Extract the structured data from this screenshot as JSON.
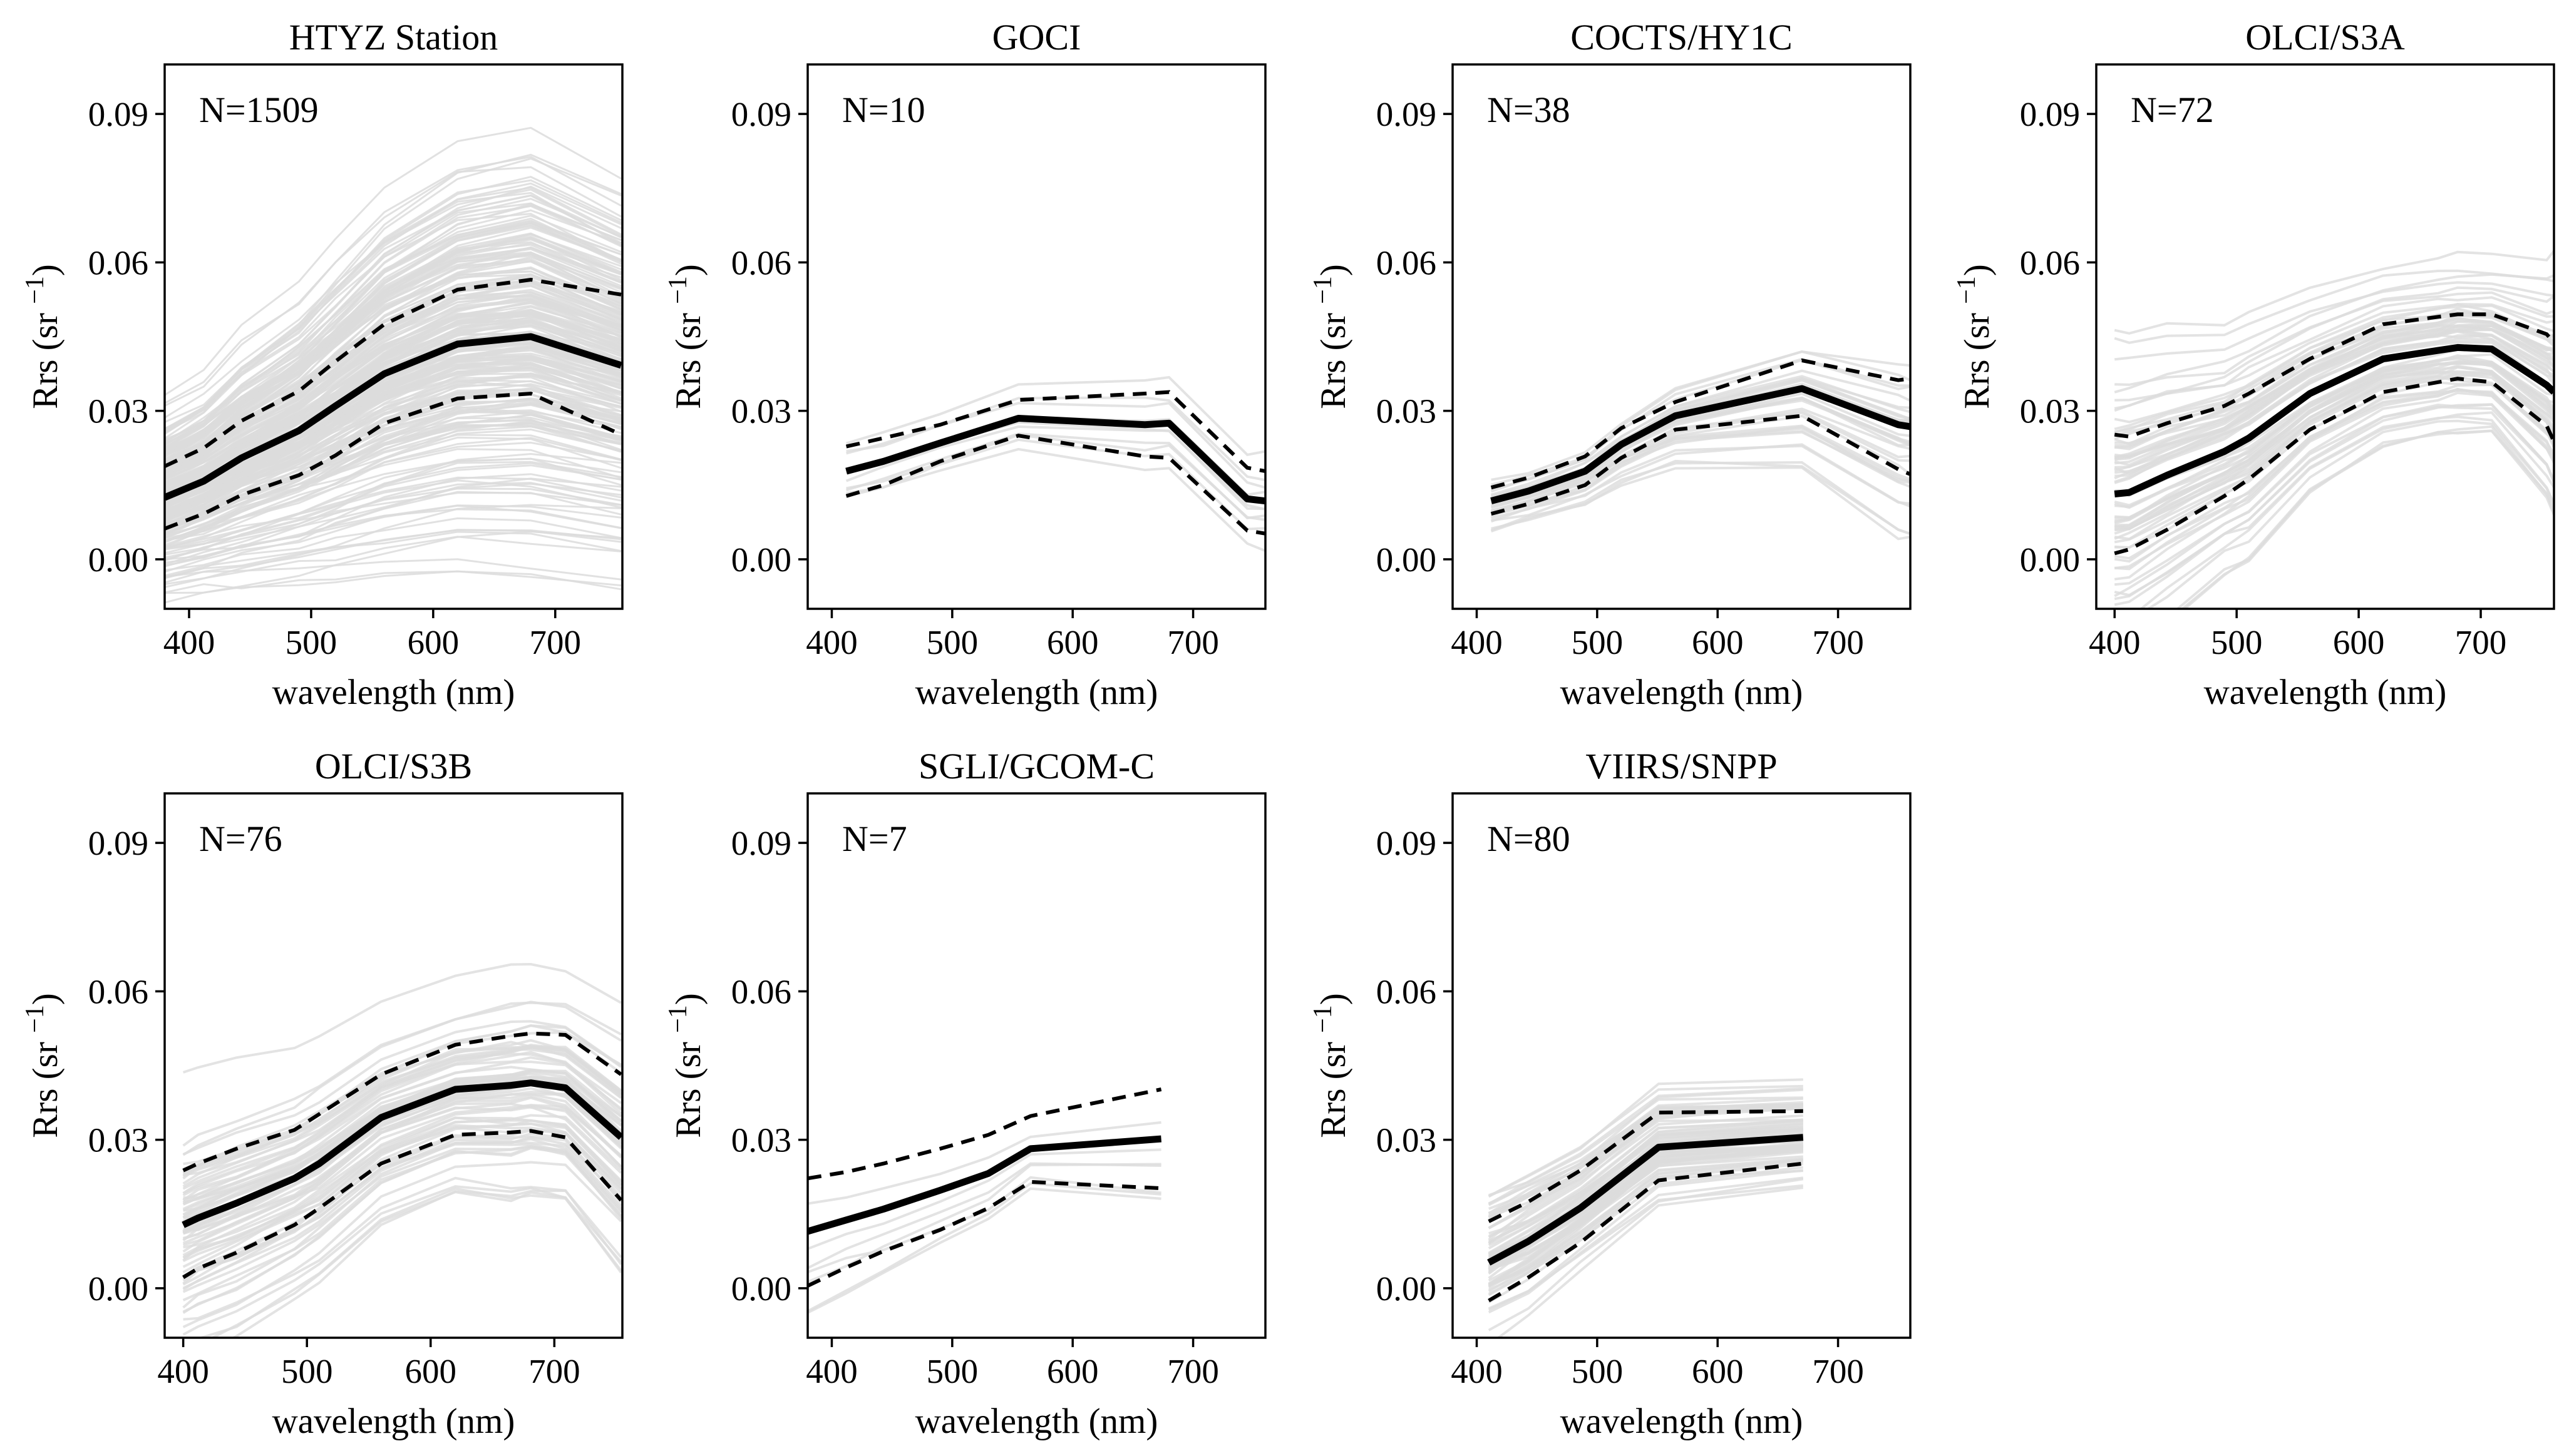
{
  "figure": {
    "xlabel": "wavelength (nm)",
    "ylabel": "Rrs (sr",
    "ylabel_sup": "−1",
    "ylabel_close": ")",
    "xticks": [
      "400",
      "500",
      "600",
      "700"
    ],
    "yticks": [
      "0.00",
      "0.03",
      "0.06",
      "0.09"
    ]
  },
  "colors": {
    "mean": "#000000",
    "sd": "#000000",
    "spectra": "#dcdcdc"
  },
  "chart_data": [
    {
      "type": "line",
      "title": "HTYZ Station",
      "n_label": "N=1509",
      "xlabel": "wavelength (nm)",
      "ylabel": "Rrs (sr−1)",
      "xlim": [
        380,
        755
      ],
      "ylim": [
        -0.01,
        0.1
      ],
      "x": [
        380,
        412,
        443,
        490,
        520,
        560,
        620,
        680,
        754
      ],
      "series": [
        {
          "name": "mean",
          "values": [
            0.0125,
            0.0158,
            0.0205,
            0.026,
            0.031,
            0.0375,
            0.0435,
            0.045,
            0.0392
          ]
        },
        {
          "name": "mean+sd",
          "values": [
            0.0188,
            0.0225,
            0.028,
            0.034,
            0.04,
            0.0475,
            0.0545,
            0.0565,
            0.0535
          ]
        },
        {
          "name": "mean-sd",
          "values": [
            0.0062,
            0.0092,
            0.013,
            0.017,
            0.021,
            0.0275,
            0.0325,
            0.0335,
            0.0252
          ]
        }
      ],
      "spread": [
        0.0095,
        0.0105,
        0.0125,
        0.0145,
        0.0165,
        0.019,
        0.021,
        0.022,
        0.02
      ]
    },
    {
      "type": "line",
      "title": "GOCI",
      "n_label": "N=10",
      "xlabel": "wavelength (nm)",
      "ylabel": "Rrs (sr−1)",
      "xlim": [
        380,
        760
      ],
      "ylim": [
        -0.01,
        0.1
      ],
      "x": [
        412,
        443,
        490,
        555,
        660,
        680,
        745,
        760
      ],
      "series": [
        {
          "name": "mean",
          "values": [
            0.0178,
            0.0198,
            0.0235,
            0.0285,
            0.0272,
            0.0275,
            0.0122,
            0.0118
          ]
        },
        {
          "name": "mean+sd",
          "values": [
            0.0228,
            0.0245,
            0.0272,
            0.0322,
            0.0335,
            0.0338,
            0.0185,
            0.0178
          ]
        },
        {
          "name": "mean-sd",
          "values": [
            0.0128,
            0.015,
            0.0198,
            0.025,
            0.0208,
            0.0205,
            0.0058,
            0.0052
          ]
        }
      ],
      "spread": [
        0.004,
        0.004,
        0.004,
        0.0045,
        0.006,
        0.006,
        0.006,
        0.006
      ]
    },
    {
      "type": "line",
      "title": "COCTS/HY1C",
      "n_label": "N=38",
      "xlabel": "wavelength (nm)",
      "ylabel": "Rrs (sr−1)",
      "xlim": [
        380,
        760
      ],
      "ylim": [
        -0.01,
        0.1
      ],
      "x": [
        412,
        443,
        490,
        520,
        565,
        670,
        750,
        760
      ],
      "series": [
        {
          "name": "mean",
          "values": [
            0.0118,
            0.0138,
            0.0178,
            0.0232,
            0.029,
            0.0345,
            0.0272,
            0.0268
          ]
        },
        {
          "name": "mean+sd",
          "values": [
            0.0145,
            0.0165,
            0.0208,
            0.0265,
            0.0318,
            0.0402,
            0.0362,
            0.0365
          ]
        },
        {
          "name": "mean-sd",
          "values": [
            0.0092,
            0.0112,
            0.015,
            0.0205,
            0.0262,
            0.029,
            0.0182,
            0.0172
          ]
        }
      ],
      "spread": [
        0.003,
        0.003,
        0.0035,
        0.004,
        0.005,
        0.008,
        0.011,
        0.011
      ]
    },
    {
      "type": "line",
      "title": "OLCI/S3A",
      "n_label": "N=72",
      "xlabel": "wavelength (nm)",
      "ylabel": "Rrs (sr−1)",
      "xlim": [
        385,
        760
      ],
      "ylim": [
        -0.01,
        0.1
      ],
      "x": [
        400,
        412,
        443,
        490,
        510,
        560,
        620,
        665,
        681,
        709,
        754,
        760
      ],
      "series": [
        {
          "name": "mean",
          "values": [
            0.0132,
            0.0135,
            0.017,
            0.0218,
            0.0245,
            0.0335,
            0.0405,
            0.0422,
            0.0428,
            0.0425,
            0.0352,
            0.0338
          ]
        },
        {
          "name": "mean+sd",
          "values": [
            0.0252,
            0.0248,
            0.0275,
            0.031,
            0.0335,
            0.0405,
            0.0475,
            0.049,
            0.0495,
            0.0495,
            0.0455,
            0.0438
          ]
        },
        {
          "name": "mean-sd",
          "values": [
            0.0012,
            0.002,
            0.006,
            0.0128,
            0.0162,
            0.0262,
            0.0338,
            0.0358,
            0.0365,
            0.0358,
            0.027,
            0.0238
          ]
        }
      ],
      "spread": [
        0.014,
        0.014,
        0.013,
        0.011,
        0.011,
        0.009,
        0.008,
        0.008,
        0.008,
        0.008,
        0.011,
        0.012
      ]
    },
    {
      "type": "line",
      "title": "OLCI/S3B",
      "n_label": "N=76",
      "xlabel": "wavelength (nm)",
      "ylabel": "Rrs (sr−1)",
      "xlim": [
        385,
        755
      ],
      "ylim": [
        -0.01,
        0.1
      ],
      "x": [
        400,
        412,
        443,
        490,
        510,
        560,
        620,
        665,
        681,
        709,
        754
      ],
      "series": [
        {
          "name": "mean",
          "values": [
            0.0128,
            0.0142,
            0.0172,
            0.0222,
            0.0252,
            0.0345,
            0.0402,
            0.041,
            0.0415,
            0.0405,
            0.0305
          ]
        },
        {
          "name": "mean+sd",
          "values": [
            0.0238,
            0.0252,
            0.0282,
            0.032,
            0.0352,
            0.0432,
            0.0492,
            0.051,
            0.0515,
            0.0512,
            0.0432
          ]
        },
        {
          "name": "mean-sd",
          "values": [
            0.0022,
            0.004,
            0.0072,
            0.0128,
            0.0162,
            0.0252,
            0.031,
            0.0315,
            0.0318,
            0.0305,
            0.0178
          ]
        }
      ],
      "spread": [
        0.012,
        0.012,
        0.012,
        0.011,
        0.011,
        0.01,
        0.01,
        0.011,
        0.011,
        0.011,
        0.013
      ]
    },
    {
      "type": "line",
      "title": "SGLI/GCOM-C",
      "n_label": "N=7",
      "xlabel": "wavelength (nm)",
      "ylabel": "Rrs (sr−1)",
      "xlim": [
        380,
        760
      ],
      "ylim": [
        -0.01,
        0.1
      ],
      "x": [
        380,
        412,
        443,
        490,
        530,
        565,
        673.5
      ],
      "series": [
        {
          "name": "mean",
          "values": [
            0.0115,
            0.0138,
            0.016,
            0.0198,
            0.0232,
            0.0282,
            0.0302
          ]
        },
        {
          "name": "mean+sd",
          "values": [
            0.0222,
            0.0235,
            0.0252,
            0.0282,
            0.031,
            0.0348,
            0.0402
          ]
        },
        {
          "name": "mean-sd",
          "values": [
            0.0005,
            0.0042,
            0.0075,
            0.0118,
            0.0162,
            0.0215,
            0.0202
          ]
        }
      ],
      "spread": [
        0.011,
        0.01,
        0.009,
        0.008,
        0.007,
        0.006,
        0.01
      ]
    },
    {
      "type": "line",
      "title": "VIIRS/SNPP",
      "n_label": "N=80",
      "xlabel": "wavelength (nm)",
      "ylabel": "Rrs (sr−1)",
      "xlim": [
        380,
        760
      ],
      "ylim": [
        -0.01,
        0.1
      ],
      "x": [
        410,
        443,
        486,
        551,
        671
      ],
      "series": [
        {
          "name": "mean",
          "values": [
            0.0052,
            0.0095,
            0.0162,
            0.0285,
            0.0305
          ]
        },
        {
          "name": "mean+sd",
          "values": [
            0.0135,
            0.0175,
            0.0238,
            0.0355,
            0.0358
          ]
        },
        {
          "name": "mean-sd",
          "values": [
            -0.0025,
            0.0022,
            0.0092,
            0.0218,
            0.0252
          ]
        }
      ],
      "spread": [
        0.008,
        0.008,
        0.007,
        0.007,
        0.006
      ]
    }
  ]
}
